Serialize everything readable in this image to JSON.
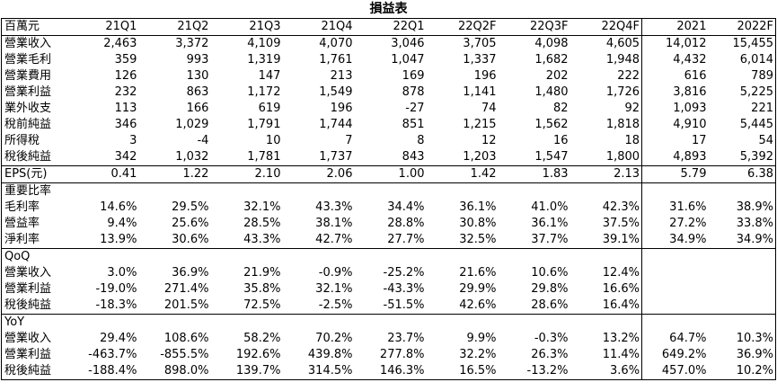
{
  "title": "損益表",
  "header": [
    "百萬元",
    "21Q1",
    "21Q2",
    "21Q3",
    "21Q4",
    "22Q1",
    "22Q2F",
    "22Q3F",
    "22Q4F",
    "2021",
    "2022F"
  ],
  "income": [
    {
      "label": "營業收入",
      "values": [
        "2,463",
        "3,372",
        "4,109",
        "4,070",
        "3,046",
        "3,705",
        "4,098",
        "4,605",
        "14,012",
        "15,455"
      ]
    },
    {
      "label": "營業毛利",
      "values": [
        "359",
        "993",
        "1,319",
        "1,761",
        "1,047",
        "1,337",
        "1,682",
        "1,948",
        "4,432",
        "6,014"
      ]
    },
    {
      "label": "營業費用",
      "values": [
        "126",
        "130",
        "147",
        "213",
        "169",
        "196",
        "202",
        "222",
        "616",
        "789"
      ]
    },
    {
      "label": "營業利益",
      "values": [
        "232",
        "863",
        "1,172",
        "1,549",
        "878",
        "1,141",
        "1,480",
        "1,726",
        "3,816",
        "5,225"
      ]
    },
    {
      "label": "業外收支",
      "values": [
        "113",
        "166",
        "619",
        "196",
        "-27",
        "74",
        "82",
        "92",
        "1,093",
        "221"
      ]
    },
    {
      "label": "稅前純益",
      "values": [
        "346",
        "1,029",
        "1,791",
        "1,744",
        "851",
        "1,215",
        "1,562",
        "1,818",
        "4,910",
        "5,445"
      ]
    },
    {
      "label": "所得稅",
      "values": [
        "3",
        "-4",
        "10",
        "7",
        "8",
        "12",
        "16",
        "18",
        "17",
        "54"
      ]
    },
    {
      "label": "稅後純益",
      "values": [
        "342",
        "1,032",
        "1,781",
        "1,737",
        "843",
        "1,203",
        "1,547",
        "1,800",
        "4,893",
        "5,392"
      ]
    }
  ],
  "eps": {
    "label": "EPS(元)",
    "values": [
      "0.41",
      "1.22",
      "2.10",
      "2.06",
      "1.00",
      "1.42",
      "1.83",
      "2.13",
      "5.79",
      "6.38"
    ]
  },
  "ratios": {
    "heading": "重要比率",
    "rows": [
      {
        "label": "毛利率",
        "values": [
          "14.6%",
          "29.5%",
          "32.1%",
          "43.3%",
          "34.4%",
          "36.1%",
          "41.0%",
          "42.3%",
          "31.6%",
          "38.9%"
        ]
      },
      {
        "label": "營益率",
        "values": [
          "9.4%",
          "25.6%",
          "28.5%",
          "38.1%",
          "28.8%",
          "30.8%",
          "36.1%",
          "37.5%",
          "27.2%",
          "33.8%"
        ]
      },
      {
        "label": "淨利率",
        "values": [
          "13.9%",
          "30.6%",
          "43.3%",
          "42.7%",
          "27.7%",
          "32.5%",
          "37.7%",
          "39.1%",
          "34.9%",
          "34.9%"
        ]
      }
    ]
  },
  "qoq": {
    "heading": "QoQ",
    "rows": [
      {
        "label": "營業收入",
        "values": [
          "3.0%",
          "36.9%",
          "21.9%",
          "-0.9%",
          "-25.2%",
          "21.6%",
          "10.6%",
          "12.4%",
          "",
          ""
        ]
      },
      {
        "label": "營業利益",
        "values": [
          "-19.0%",
          "271.4%",
          "35.8%",
          "32.1%",
          "-43.3%",
          "29.9%",
          "29.8%",
          "16.6%",
          "",
          ""
        ]
      },
      {
        "label": "稅後純益",
        "values": [
          "-18.3%",
          "201.5%",
          "72.5%",
          "-2.5%",
          "-51.5%",
          "42.6%",
          "28.6%",
          "16.4%",
          "",
          ""
        ]
      }
    ]
  },
  "yoy": {
    "heading": "YoY",
    "rows": [
      {
        "label": "營業收入",
        "values": [
          "29.4%",
          "108.6%",
          "58.2%",
          "70.2%",
          "23.7%",
          "9.9%",
          "-0.3%",
          "13.2%",
          "64.7%",
          "10.3%"
        ]
      },
      {
        "label": "營業利益",
        "values": [
          "-463.7%",
          "-855.5%",
          "192.6%",
          "439.8%",
          "277.8%",
          "32.2%",
          "26.3%",
          "11.4%",
          "649.2%",
          "36.9%"
        ]
      },
      {
        "label": "稅後純益",
        "values": [
          "-188.4%",
          "898.0%",
          "139.7%",
          "314.5%",
          "146.3%",
          "16.5%",
          "-13.2%",
          "3.6%",
          "457.0%",
          "10.2%"
        ]
      }
    ]
  }
}
